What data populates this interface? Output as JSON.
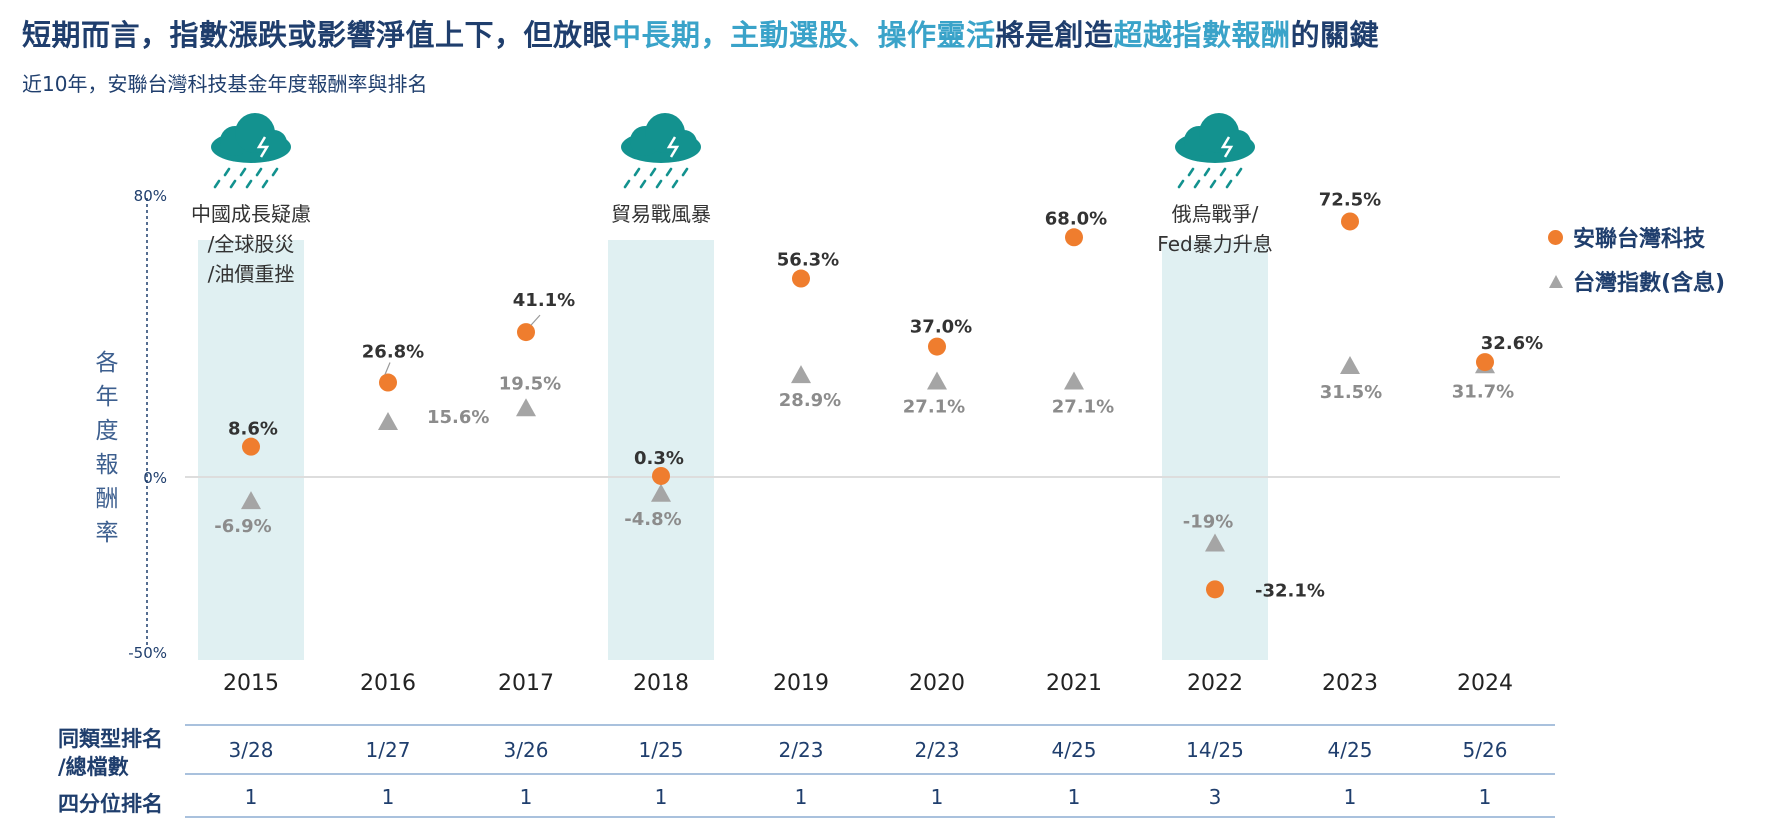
{
  "headline": {
    "part1": "短期而言，指數漲跌或影響淨值上下，但放眼",
    "hl1": "中長期，主動選股、操作靈活",
    "part2": "將是創造",
    "hl2": "超越指數報酬",
    "part3": "的關鍵"
  },
  "subtitle": "近10年，安聯台灣科技基金年度報酬率與排名",
  "colors": {
    "fund": "#ef7d2e",
    "index": "#a5a5a5",
    "crisis_band": "#e0f0f2",
    "cloud": "#13928f",
    "navy": "#1f3e6d",
    "accent": "#3aa3c9"
  },
  "icons": [
    "storm-cloud-icon",
    "storm-cloud-icon",
    "storm-cloud-icon"
  ],
  "chart_data": {
    "type": "scatter",
    "ylabel": "各年度報酬率",
    "ylim": [
      -50,
      80
    ],
    "yticks": [
      "80%",
      "0%",
      "-50%"
    ],
    "categories": [
      "2015",
      "2016",
      "2017",
      "2018",
      "2019",
      "2020",
      "2021",
      "2022",
      "2023",
      "2024"
    ],
    "series": [
      {
        "name": "安聯台灣科技",
        "marker": "circle",
        "values": [
          8.6,
          26.8,
          41.1,
          0.3,
          56.3,
          37.0,
          68.0,
          -32.1,
          72.5,
          32.6
        ],
        "labels": [
          "8.6%",
          "26.8%",
          "41.1%",
          "0.3%",
          "56.3%",
          "37.0%",
          "68.0%",
          "-32.1%",
          "72.5%",
          "32.6%"
        ]
      },
      {
        "name": "台灣指數(含息)",
        "marker": "triangle",
        "values": [
          -6.9,
          15.6,
          19.5,
          -4.8,
          28.9,
          27.1,
          27.1,
          -19,
          31.5,
          31.7
        ],
        "labels": [
          "-6.9%",
          "15.6%",
          "19.5%",
          "-4.8%",
          "28.9%",
          "27.1%",
          "27.1%",
          "-19%",
          "31.5%",
          "31.7%"
        ]
      }
    ],
    "events": [
      {
        "year": "2015",
        "lines": [
          "中國成長疑慮",
          "/全球股災",
          "/油價重挫"
        ]
      },
      {
        "year": "2018",
        "lines": [
          "貿易戰風暴"
        ]
      },
      {
        "year": "2022",
        "lines": [
          "俄烏戰爭/",
          "Fed暴力升息"
        ]
      }
    ],
    "legend_position": "right"
  },
  "table": {
    "row1_header": [
      "同類型排名",
      "/總檔數"
    ],
    "row2_header": "四分位排名",
    "rank": [
      "3/28",
      "1/27",
      "3/26",
      "1/25",
      "2/23",
      "2/23",
      "4/25",
      "14/25",
      "4/25",
      "5/26"
    ],
    "quartile": [
      "1",
      "1",
      "1",
      "1",
      "1",
      "1",
      "1",
      "3",
      "1",
      "1"
    ]
  }
}
